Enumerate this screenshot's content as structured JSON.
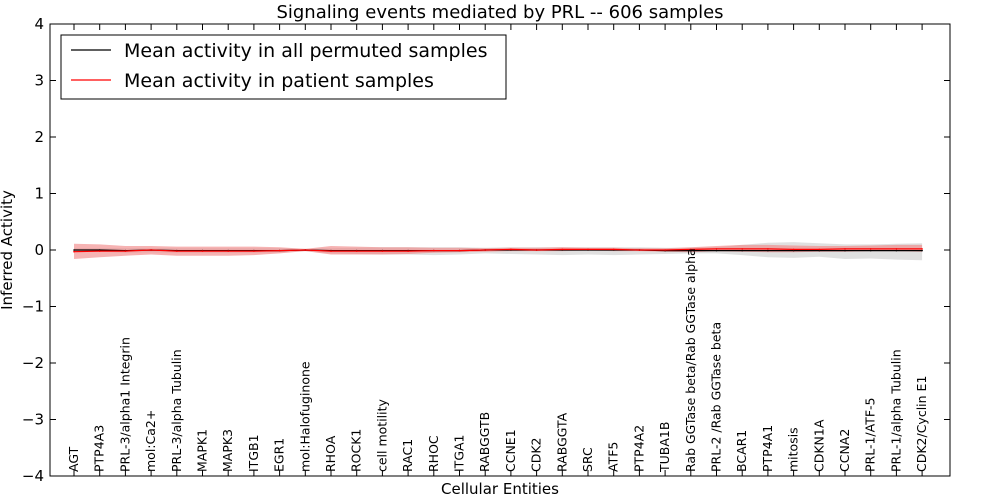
{
  "chart_data": {
    "type": "line",
    "title": "Signaling events mediated by PRL -- 606 samples",
    "xlabel": "Cellular Entities",
    "ylabel": "Inferred Activity",
    "ylim": [
      -4,
      4
    ],
    "yticks": [
      -4,
      -3,
      -2,
      -1,
      0,
      1,
      2,
      3,
      4
    ],
    "ytick_labels": [
      "−4",
      "−3",
      "−2",
      "−1",
      "0",
      "1",
      "2",
      "3",
      "4"
    ],
    "grid": false,
    "legend_position": "top-left",
    "categories": [
      "AGT",
      "PTP4A3",
      "PRL-3/alpha1 Integrin",
      "mol:Ca2+",
      "PRL-3/alpha Tubulin",
      "MAPK1",
      "MAPK3",
      "ITGB1",
      "EGR1",
      "mol:Halofuginone",
      "RHOA",
      "ROCK1",
      "cell motility",
      "RAC1",
      "RHOC",
      "ITGA1",
      "RABGGTB",
      "CCNE1",
      "CDK2",
      "RABGGTA",
      "SRC",
      "ATF5",
      "PTP4A2",
      "TUBA1B",
      "Rab GGTase beta/Rab GGTase alpha",
      "PRL-2 /Rab GGTase beta",
      "BCAR1",
      "PTP4A1",
      "mitosis",
      "CDKN1A",
      "CCNA2",
      "PRL-1/ATF-5",
      "PRL-1/alpha Tubulin",
      "CDK2/Cyclin E1"
    ],
    "series": [
      {
        "name": "Mean activity in all permuted samples",
        "color": "#000000",
        "band_color": "#bbbbbb",
        "values": [
          0.0,
          0.0,
          -0.01,
          0.0,
          -0.01,
          -0.01,
          -0.01,
          -0.01,
          -0.01,
          0.0,
          -0.01,
          -0.01,
          -0.01,
          -0.01,
          -0.01,
          -0.01,
          0.0,
          0.0,
          0.0,
          0.0,
          0.0,
          0.0,
          0.0,
          -0.01,
          -0.01,
          -0.01,
          -0.01,
          -0.01,
          -0.01,
          -0.01,
          -0.01,
          -0.01,
          -0.01,
          -0.01
        ],
        "band_lower": [
          -0.03,
          -0.03,
          -0.05,
          -0.04,
          -0.05,
          -0.05,
          -0.05,
          -0.05,
          -0.04,
          -0.02,
          -0.06,
          -0.07,
          -0.08,
          -0.08,
          -0.09,
          -0.08,
          -0.06,
          -0.07,
          -0.08,
          -0.09,
          -0.08,
          -0.09,
          -0.08,
          -0.07,
          -0.06,
          -0.06,
          -0.09,
          -0.13,
          -0.14,
          -0.12,
          -0.16,
          -0.15,
          -0.17,
          -0.18
        ],
        "band_upper": [
          0.03,
          0.03,
          0.03,
          0.03,
          0.03,
          0.03,
          0.03,
          0.03,
          0.03,
          0.02,
          0.03,
          0.04,
          0.05,
          0.05,
          0.05,
          0.05,
          0.04,
          0.05,
          0.05,
          0.05,
          0.05,
          0.05,
          0.05,
          0.04,
          0.04,
          0.05,
          0.09,
          0.13,
          0.14,
          0.12,
          0.1,
          0.1,
          0.11,
          0.12
        ]
      },
      {
        "name": "Mean activity in patient samples",
        "color": "#ff0000",
        "band_color": "#f08080",
        "values": [
          -0.03,
          -0.02,
          -0.02,
          0.0,
          -0.02,
          -0.02,
          -0.02,
          -0.02,
          -0.01,
          0.0,
          -0.02,
          -0.02,
          -0.02,
          -0.02,
          -0.01,
          -0.01,
          0.0,
          0.01,
          0.0,
          0.01,
          0.01,
          0.01,
          0.0,
          0.0,
          0.01,
          0.02,
          0.02,
          0.02,
          0.01,
          0.01,
          0.02,
          0.02,
          0.02,
          0.02
        ],
        "band_lower": [
          -0.16,
          -0.13,
          -0.1,
          -0.08,
          -0.1,
          -0.1,
          -0.1,
          -0.09,
          -0.06,
          -0.02,
          -0.08,
          -0.08,
          -0.08,
          -0.07,
          -0.05,
          -0.04,
          -0.03,
          -0.02,
          -0.02,
          -0.02,
          -0.01,
          -0.02,
          -0.02,
          -0.03,
          -0.04,
          -0.02,
          -0.03,
          -0.04,
          -0.04,
          -0.03,
          -0.03,
          -0.02,
          -0.02,
          -0.03
        ],
        "band_upper": [
          0.11,
          0.1,
          0.07,
          0.07,
          0.06,
          0.06,
          0.06,
          0.06,
          0.05,
          0.02,
          0.07,
          0.06,
          0.05,
          0.05,
          0.04,
          0.04,
          0.03,
          0.04,
          0.04,
          0.05,
          0.04,
          0.04,
          0.03,
          0.03,
          0.05,
          0.07,
          0.09,
          0.09,
          0.08,
          0.07,
          0.07,
          0.08,
          0.09,
          0.09
        ]
      }
    ]
  }
}
